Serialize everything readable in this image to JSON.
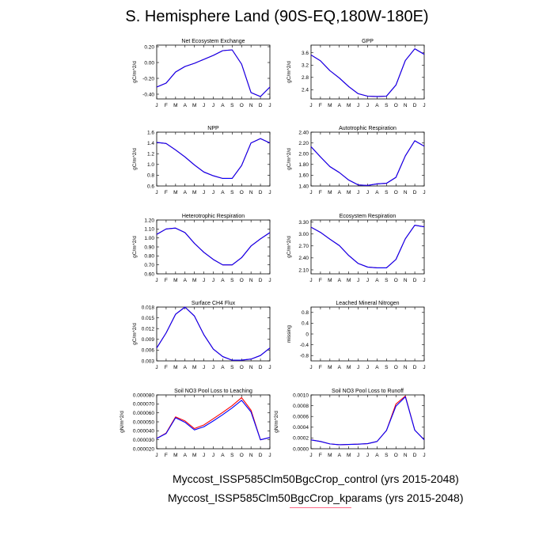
{
  "title": "S. Hemisphere Land (90S-EQ,180W-180E)",
  "colors": {
    "control": "#ff0000",
    "kparams": "#0000ff",
    "legend_line": "#ff6b8a"
  },
  "legend": [
    {
      "label": "Myccost_ISSP585Clm50BgcCrop_control (yrs 2015-2048)",
      "color": "#ff0000"
    },
    {
      "label": "Myccost_ISSP585Clm50BgcCrop_kparams (yrs 2015-2048)",
      "color": "#0000ff"
    }
  ],
  "chart_data": [
    {
      "type": "line",
      "title": "Net Ecosystem Exchange",
      "ylabel": "gC/m^2/d",
      "x": [
        "J",
        "F",
        "M",
        "A",
        "M",
        "J",
        "J",
        "A",
        "S",
        "O",
        "N",
        "D",
        "J"
      ],
      "ylim": [
        -0.46,
        0.22
      ],
      "yticks": [
        -0.4,
        -0.2,
        0.0,
        0.2
      ],
      "ytick_labels": [
        "-0.40",
        "-0.20",
        "0.00",
        "0.20"
      ],
      "series": [
        {
          "name": "control",
          "values": [
            -0.31,
            -0.26,
            -0.12,
            -0.05,
            -0.01,
            0.04,
            0.09,
            0.15,
            0.16,
            -0.02,
            -0.38,
            -0.43,
            -0.31
          ]
        },
        {
          "name": "kparams",
          "values": [
            -0.31,
            -0.26,
            -0.12,
            -0.05,
            -0.01,
            0.04,
            0.09,
            0.15,
            0.16,
            -0.02,
            -0.38,
            -0.43,
            -0.31
          ]
        }
      ]
    },
    {
      "type": "line",
      "title": "GPP",
      "ylabel": "gC/m^2/d",
      "x": [
        "J",
        "F",
        "M",
        "A",
        "M",
        "J",
        "J",
        "A",
        "S",
        "O",
        "N",
        "D",
        "J"
      ],
      "ylim": [
        2.1,
        3.85
      ],
      "yticks": [
        2.4,
        2.8,
        3.2,
        3.6
      ],
      "ytick_labels": [
        "2.4",
        "2.8",
        "3.2",
        "3.6"
      ],
      "series": [
        {
          "name": "control",
          "values": [
            3.53,
            3.34,
            3.02,
            2.78,
            2.5,
            2.27,
            2.19,
            2.18,
            2.19,
            2.55,
            3.35,
            3.73,
            3.55
          ]
        },
        {
          "name": "kparams",
          "values": [
            3.53,
            3.34,
            3.02,
            2.78,
            2.5,
            2.27,
            2.19,
            2.18,
            2.19,
            2.55,
            3.35,
            3.73,
            3.55
          ]
        }
      ]
    },
    {
      "type": "line",
      "title": "NPP",
      "ylabel": "gC/m^2/d",
      "x": [
        "J",
        "F",
        "M",
        "A",
        "M",
        "J",
        "J",
        "A",
        "S",
        "O",
        "N",
        "D",
        "J"
      ],
      "ylim": [
        0.6,
        1.6
      ],
      "yticks": [
        0.6,
        0.8,
        1.0,
        1.2,
        1.4,
        1.6
      ],
      "ytick_labels": [
        "0.6",
        "0.8",
        "1.0",
        "1.2",
        "1.4",
        "1.6"
      ],
      "series": [
        {
          "name": "control",
          "values": [
            1.41,
            1.39,
            1.27,
            1.14,
            0.99,
            0.86,
            0.79,
            0.74,
            0.74,
            0.98,
            1.4,
            1.48,
            1.4
          ]
        },
        {
          "name": "kparams",
          "values": [
            1.41,
            1.39,
            1.27,
            1.14,
            0.99,
            0.86,
            0.79,
            0.74,
            0.74,
            0.98,
            1.4,
            1.48,
            1.4
          ]
        }
      ]
    },
    {
      "type": "line",
      "title": "Autotrophic Respiration",
      "ylabel": "gC/m^2/d",
      "x": [
        "J",
        "F",
        "M",
        "A",
        "M",
        "J",
        "J",
        "A",
        "S",
        "O",
        "N",
        "D",
        "J"
      ],
      "ylim": [
        1.4,
        2.4
      ],
      "yticks": [
        1.4,
        1.6,
        1.8,
        2.0,
        2.2,
        2.4
      ],
      "ytick_labels": [
        "1.40",
        "1.60",
        "1.80",
        "2.00",
        "2.20",
        "2.40"
      ],
      "series": [
        {
          "name": "control",
          "values": [
            2.13,
            1.94,
            1.76,
            1.65,
            1.51,
            1.42,
            1.41,
            1.44,
            1.45,
            1.56,
            1.96,
            2.24,
            2.14
          ]
        },
        {
          "name": "kparams",
          "values": [
            2.13,
            1.94,
            1.76,
            1.65,
            1.51,
            1.42,
            1.41,
            1.44,
            1.45,
            1.56,
            1.96,
            2.24,
            2.14
          ]
        }
      ]
    },
    {
      "type": "line",
      "title": "Heterotrophic Respiration",
      "ylabel": "gC/m^2/d",
      "x": [
        "J",
        "F",
        "M",
        "A",
        "M",
        "J",
        "J",
        "A",
        "S",
        "O",
        "N",
        "D",
        "J"
      ],
      "ylim": [
        0.6,
        1.2
      ],
      "yticks": [
        0.6,
        0.7,
        0.8,
        0.9,
        1.0,
        1.1,
        1.2
      ],
      "ytick_labels": [
        "0.60",
        "0.70",
        "0.80",
        "0.90",
        "1.00",
        "1.10",
        "1.20"
      ],
      "series": [
        {
          "name": "control",
          "values": [
            1.04,
            1.1,
            1.11,
            1.06,
            0.94,
            0.84,
            0.76,
            0.7,
            0.7,
            0.78,
            0.91,
            0.99,
            1.06
          ]
        },
        {
          "name": "kparams",
          "values": [
            1.04,
            1.1,
            1.11,
            1.06,
            0.94,
            0.84,
            0.76,
            0.7,
            0.7,
            0.78,
            0.91,
            0.99,
            1.06
          ]
        }
      ]
    },
    {
      "type": "line",
      "title": "Ecosystem Respiration",
      "ylabel": "gC/m^2/d",
      "x": [
        "J",
        "F",
        "M",
        "A",
        "M",
        "J",
        "J",
        "A",
        "S",
        "O",
        "N",
        "D",
        "J"
      ],
      "ylim": [
        2.0,
        3.35
      ],
      "yticks": [
        2.1,
        2.4,
        2.7,
        3.0,
        3.3
      ],
      "ytick_labels": [
        "2.10",
        "2.40",
        "2.70",
        "3.00",
        "3.30"
      ],
      "series": [
        {
          "name": "control",
          "values": [
            3.17,
            3.04,
            2.87,
            2.71,
            2.46,
            2.26,
            2.17,
            2.15,
            2.15,
            2.36,
            2.88,
            3.22,
            3.18
          ]
        },
        {
          "name": "kparams",
          "values": [
            3.17,
            3.04,
            2.87,
            2.71,
            2.46,
            2.26,
            2.17,
            2.15,
            2.15,
            2.36,
            2.88,
            3.22,
            3.18
          ]
        }
      ]
    },
    {
      "type": "line",
      "title": "Surface CH4 Flux",
      "ylabel": "gC/m^2/d",
      "x": [
        "J",
        "F",
        "M",
        "A",
        "M",
        "J",
        "J",
        "A",
        "S",
        "O",
        "N",
        "D",
        "J"
      ],
      "ylim": [
        0.003,
        0.018
      ],
      "yticks": [
        0.003,
        0.006,
        0.009,
        0.012,
        0.015,
        0.018
      ],
      "ytick_labels": [
        "0.003",
        "0.006",
        "0.009",
        "0.012",
        "0.015",
        "0.018"
      ],
      "series": [
        {
          "name": "control",
          "values": [
            0.0066,
            0.0108,
            0.016,
            0.018,
            0.0155,
            0.0103,
            0.0063,
            0.0042,
            0.0032,
            0.0032,
            0.0035,
            0.0045,
            0.0066
          ]
        },
        {
          "name": "kparams",
          "values": [
            0.0066,
            0.0108,
            0.016,
            0.018,
            0.0155,
            0.0103,
            0.0063,
            0.0042,
            0.0032,
            0.0032,
            0.0035,
            0.0045,
            0.0066
          ]
        }
      ]
    },
    {
      "type": "line",
      "title": "Leached Mineral Nitrogen",
      "ylabel": "missing",
      "x": [
        "J",
        "F",
        "M",
        "A",
        "M",
        "J",
        "J",
        "A",
        "S",
        "O",
        "N",
        "D",
        "J"
      ],
      "ylim": [
        -1.0,
        1.0
      ],
      "yticks": [
        -0.8,
        -0.4,
        0.0,
        0.4,
        0.8
      ],
      "ytick_labels": [
        "-0.8",
        "-0.4",
        "0",
        "0.4",
        "0.8"
      ],
      "series": []
    },
    {
      "type": "line",
      "title": "Soil NO3 Pool Loss to Leaching",
      "ylabel": "gN/m^2/d",
      "x": [
        "J",
        "F",
        "M",
        "A",
        "M",
        "J",
        "J",
        "A",
        "S",
        "O",
        "N",
        "D",
        "J"
      ],
      "ylim": [
        2e-05,
        8e-05
      ],
      "yticks": [
        2e-05,
        3e-05,
        4e-05,
        5e-05,
        6e-05,
        7e-05,
        8e-05
      ],
      "ytick_labels": [
        "0.000020",
        "0.000030",
        "0.000040",
        "0.000050",
        "0.000060",
        "0.000070",
        "0.000080"
      ],
      "series": [
        {
          "name": "control",
          "values": [
            3.15e-05,
            3.75e-05,
            5.55e-05,
            5.1e-05,
            4.25e-05,
            4.65e-05,
            5.35e-05,
            6.05e-05,
            6.8e-05,
            7.7e-05,
            6.3e-05,
            3e-05,
            3.25e-05
          ]
        },
        {
          "name": "kparams",
          "values": [
            3.15e-05,
            3.7e-05,
            5.45e-05,
            4.95e-05,
            4.1e-05,
            4.45e-05,
            5.1e-05,
            5.8e-05,
            6.55e-05,
            7.4e-05,
            6.1e-05,
            3e-05,
            3.25e-05
          ]
        }
      ]
    },
    {
      "type": "line",
      "title": "Soil NO3 Pool Loss to Runoff",
      "ylabel": "gN/m^2/d",
      "x": [
        "J",
        "F",
        "M",
        "A",
        "M",
        "J",
        "J",
        "A",
        "S",
        "O",
        "N",
        "D",
        "J"
      ],
      "ylim": [
        0.0,
        0.001
      ],
      "yticks": [
        0.0,
        0.0002,
        0.0004,
        0.0006,
        0.0008,
        0.001
      ],
      "ytick_labels": [
        "0.0000",
        "0.0002",
        "0.0004",
        "0.0006",
        "0.0008",
        "0.0010"
      ],
      "series": [
        {
          "name": "control",
          "values": [
            0.000165,
            0.000135,
            9e-05,
            7.5e-05,
            8e-05,
            8.5e-05,
            9.5e-05,
            0.000135,
            0.00034,
            0.00083,
            0.00098,
            0.000345,
            0.000165
          ]
        },
        {
          "name": "kparams",
          "values": [
            0.000165,
            0.000135,
            9e-05,
            7.5e-05,
            8e-05,
            8.5e-05,
            9.5e-05,
            0.000135,
            0.00034,
            0.00079,
            0.000965,
            0.000345,
            0.000165
          ]
        }
      ]
    }
  ]
}
